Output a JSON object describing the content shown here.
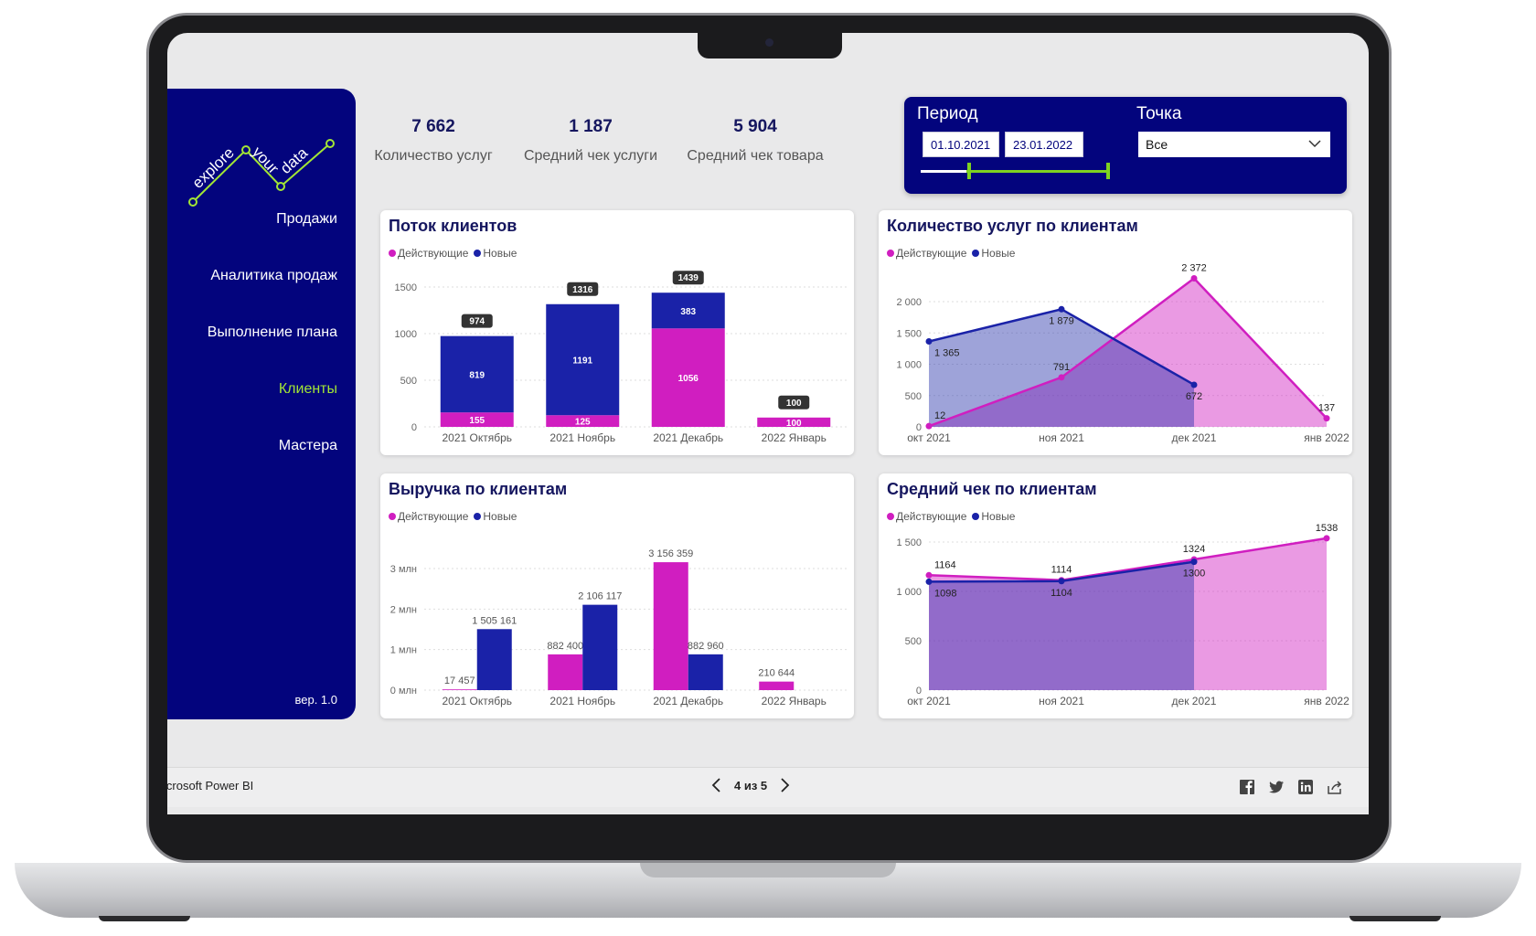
{
  "app": {
    "brand": "icrosoft Power BI",
    "version": "вер. 1.0"
  },
  "colors": {
    "navy": "#03047d",
    "active": "#d01ec0",
    "new": "#1a22a8",
    "accent": "#a3e635"
  },
  "nav": [
    {
      "label": "Продажи",
      "active": false
    },
    {
      "label": "Аналитика продаж",
      "active": false
    },
    {
      "label": "Выполнение плана",
      "active": false
    },
    {
      "label": "Клиенты",
      "active": true
    },
    {
      "label": "Мастера",
      "active": false
    }
  ],
  "kpis": [
    {
      "value": "7 662",
      "label": "Количество услуг"
    },
    {
      "value": "1 187",
      "label": "Средний чек услуги"
    },
    {
      "value": "5 904",
      "label": "Средний чек товара"
    }
  ],
  "filters": {
    "period_label": "Период",
    "date_from": "01.10.2021",
    "date_to": "23.01.2022",
    "point_label": "Точка",
    "point_value": "Все"
  },
  "legend": {
    "active": "Действующие",
    "new": "Новые"
  },
  "pager": {
    "text": "4 из 5"
  },
  "icons": [
    "logo-icon",
    "chevron-down-icon",
    "chevron-left-icon",
    "chevron-right-icon",
    "facebook-icon",
    "twitter-icon",
    "linkedin-icon",
    "share-icon"
  ],
  "chart_data": [
    {
      "id": "flow",
      "type": "bar",
      "title": "Поток клиентов",
      "stacked": true,
      "categories": [
        "2021 Октябрь",
        "2021 Ноябрь",
        "2021 Декабрь",
        "2022 Январь"
      ],
      "series": [
        {
          "name": "Действующие",
          "values": [
            155,
            125,
            1056,
            100
          ]
        },
        {
          "name": "Новые",
          "values": [
            819,
            1191,
            383,
            0
          ]
        }
      ],
      "totals": [
        974,
        1316,
        1439,
        100
      ],
      "yticks": [
        "0",
        "500",
        "1000",
        "1500"
      ],
      "ylim": [
        0,
        1500
      ]
    },
    {
      "id": "services",
      "type": "area",
      "title": "Количество услуг по клиентам",
      "x": [
        "окт 2021",
        "ноя 2021",
        "дек 2021",
        "янв 2022"
      ],
      "series": [
        {
          "name": "Действующие",
          "values": [
            12,
            791,
            2372,
            137
          ],
          "labels": [
            "12",
            "791",
            "2 372",
            "137"
          ]
        },
        {
          "name": "Новые",
          "values": [
            1365,
            1879,
            672,
            null
          ],
          "labels": [
            "1 365",
            "1 879",
            "672",
            ""
          ]
        }
      ],
      "yticks": [
        "0",
        "500",
        "1 000",
        "1 500",
        "2 000"
      ],
      "ylim": [
        0,
        2000
      ]
    },
    {
      "id": "revenue",
      "type": "bar",
      "title": "Выручка по клиентам",
      "stacked": false,
      "categories": [
        "2021 Октябрь",
        "2021 Ноябрь",
        "2021 Декабрь",
        "2022 Январь"
      ],
      "series": [
        {
          "name": "Действующие",
          "values": [
            17457,
            882400,
            3156359,
            210644
          ],
          "labels": [
            "17 457",
            "882 400",
            "3 156 359",
            "210 644"
          ]
        },
        {
          "name": "Новые",
          "values": [
            1505161,
            2106117,
            882960,
            0
          ],
          "labels": [
            "1 505 161",
            "2 106 117",
            "882 960",
            ""
          ]
        }
      ],
      "yticks": [
        "0 млн",
        "1 млн",
        "2 млн",
        "3 млн"
      ],
      "ylim": [
        0,
        3000000
      ]
    },
    {
      "id": "avgcheck",
      "type": "area",
      "title": "Средний чек по клиентам",
      "x": [
        "окт 2021",
        "ноя 2021",
        "дек 2021",
        "янв 2022"
      ],
      "series": [
        {
          "name": "Действующие",
          "values": [
            1164,
            1114,
            1324,
            1538
          ],
          "labels": [
            "1164",
            "1114",
            "1324",
            "1538"
          ]
        },
        {
          "name": "Новые",
          "values": [
            1098,
            1104,
            1300,
            null
          ],
          "labels": [
            "1098",
            "1104",
            "1300",
            ""
          ]
        }
      ],
      "yticks": [
        "0",
        "500",
        "1 000",
        "1 500"
      ],
      "ylim": [
        0,
        1500
      ]
    }
  ]
}
